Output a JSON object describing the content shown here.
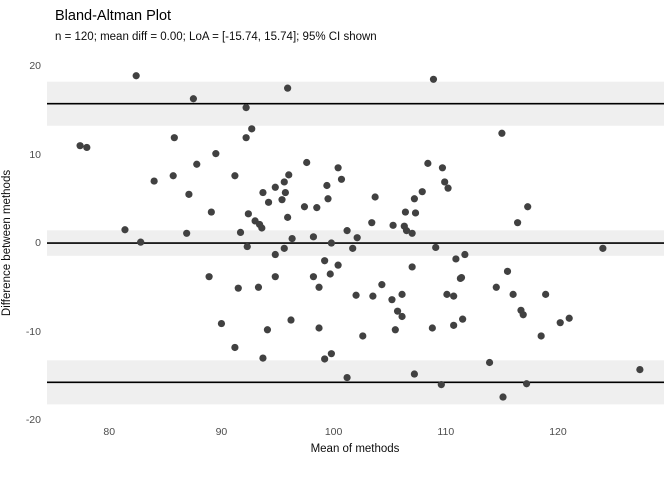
{
  "title": "Bland-Altman Plot",
  "subtitle": "n = 120; mean diff = 0.00; LoA = [-15.74, 15.74]; 95% CI shown",
  "stats": {
    "n": 120,
    "mean_diff": "0.00",
    "loa_lower": -15.74,
    "loa_upper": 15.74,
    "ci_level": "95%"
  },
  "colors": {
    "point": "#414141",
    "band": "#efefef",
    "line": "#000000",
    "tick_text": "#4d4d4d",
    "background": "#ffffff"
  },
  "chart_data": {
    "type": "scatter",
    "title": "Bland-Altman Plot",
    "subtitle": "n = 120; mean diff = 0.00; LoA = [-15.74, 15.74]; 95% CI shown",
    "xlabel": "Mean of methods",
    "ylabel": "Difference between methods",
    "xlim": [
      74.45,
      129.45
    ],
    "ylim": [
      -20.56,
      20.68
    ],
    "x_ticks": [
      80,
      90,
      100,
      110,
      120
    ],
    "y_ticks": [
      20,
      10,
      0,
      -10,
      -20
    ],
    "grid": false,
    "legend": false,
    "reference_lines": [
      {
        "name": "upper-loa",
        "y": 15.74,
        "ci": [
          13.25,
          18.23
        ]
      },
      {
        "name": "mean-diff",
        "y": 0.0,
        "ci": [
          -1.44,
          1.44
        ]
      },
      {
        "name": "lower-loa",
        "y": -15.74,
        "ci": [
          -18.23,
          -13.25
        ]
      }
    ],
    "points": [
      [
        82.4,
        18.9
      ],
      [
        87.5,
        16.3
      ],
      [
        77.4,
        11.0
      ],
      [
        78.0,
        10.8
      ],
      [
        85.8,
        11.9
      ],
      [
        87.8,
        8.9
      ],
      [
        85.7,
        7.6
      ],
      [
        84.0,
        7.0
      ],
      [
        95.9,
        17.5
      ],
      [
        92.2,
        15.3
      ],
      [
        92.7,
        12.9
      ],
      [
        92.2,
        11.9
      ],
      [
        89.5,
        10.1
      ],
      [
        97.6,
        9.1
      ],
      [
        91.2,
        7.6
      ],
      [
        96.0,
        7.7
      ],
      [
        100.4,
        8.5
      ],
      [
        100.7,
        7.2
      ],
      [
        95.6,
        6.9
      ],
      [
        94.8,
        6.3
      ],
      [
        99.4,
        6.5
      ],
      [
        108.9,
        18.5
      ],
      [
        115.0,
        12.4
      ],
      [
        108.4,
        9.0
      ],
      [
        109.7,
        8.5
      ],
      [
        109.9,
        6.9
      ],
      [
        110.2,
        6.2
      ],
      [
        107.9,
        5.8
      ],
      [
        87.1,
        5.5
      ],
      [
        81.4,
        1.5
      ],
      [
        82.8,
        0.1
      ],
      [
        86.9,
        1.1
      ],
      [
        93.7,
        5.7
      ],
      [
        95.7,
        5.7
      ],
      [
        94.2,
        4.6
      ],
      [
        95.4,
        4.9
      ],
      [
        97.4,
        4.1
      ],
      [
        98.5,
        4.0
      ],
      [
        99.5,
        5.0
      ],
      [
        89.1,
        3.5
      ],
      [
        92.4,
        3.3
      ],
      [
        93.0,
        2.5
      ],
      [
        93.4,
        2.1
      ],
      [
        93.6,
        1.7
      ],
      [
        91.7,
        1.2
      ],
      [
        95.9,
        2.9
      ],
      [
        101.2,
        1.4
      ],
      [
        96.3,
        0.5
      ],
      [
        98.2,
        0.7
      ],
      [
        99.8,
        0.0
      ],
      [
        101.7,
        -0.6
      ],
      [
        92.3,
        -0.4
      ],
      [
        94.8,
        -1.3
      ],
      [
        95.6,
        -0.6
      ],
      [
        94.8,
        -3.8
      ],
      [
        99.2,
        -2.0
      ],
      [
        100.4,
        -2.5
      ],
      [
        99.7,
        -3.5
      ],
      [
        98.2,
        -3.8
      ],
      [
        98.7,
        -5.0
      ],
      [
        88.9,
        -3.8
      ],
      [
        91.5,
        -5.1
      ],
      [
        93.3,
        -5.0
      ],
      [
        102.0,
        -5.9
      ],
      [
        103.7,
        5.2
      ],
      [
        107.2,
        5.0
      ],
      [
        106.4,
        3.5
      ],
      [
        107.3,
        3.4
      ],
      [
        103.4,
        2.3
      ],
      [
        105.3,
        2.0
      ],
      [
        106.3,
        1.9
      ],
      [
        106.5,
        1.4
      ],
      [
        107.0,
        1.1
      ],
      [
        102.1,
        0.6
      ],
      [
        109.1,
        -0.5
      ],
      [
        110.9,
        -1.8
      ],
      [
        111.7,
        -1.3
      ],
      [
        107.0,
        -2.7
      ],
      [
        111.3,
        -4.0
      ],
      [
        111.4,
        -3.9
      ],
      [
        104.3,
        -4.7
      ],
      [
        103.5,
        -6.0
      ],
      [
        105.2,
        -6.4
      ],
      [
        106.1,
        -5.8
      ],
      [
        110.1,
        -5.8
      ],
      [
        110.7,
        -6.0
      ],
      [
        115.5,
        -3.2
      ],
      [
        114.5,
        -5.0
      ],
      [
        116.0,
        -5.8
      ],
      [
        117.3,
        4.1
      ],
      [
        116.4,
        2.3
      ],
      [
        124.0,
        -0.6
      ],
      [
        118.9,
        -5.8
      ],
      [
        116.7,
        -7.6
      ],
      [
        90.0,
        -9.1
      ],
      [
        91.2,
        -11.8
      ],
      [
        94.1,
        -9.8
      ],
      [
        96.2,
        -8.7
      ],
      [
        98.7,
        -9.6
      ],
      [
        93.7,
        -13.0
      ],
      [
        99.2,
        -13.1
      ],
      [
        99.8,
        -12.5
      ],
      [
        101.2,
        -15.2
      ],
      [
        102.6,
        -10.5
      ],
      [
        105.5,
        -9.8
      ],
      [
        105.7,
        -7.7
      ],
      [
        106.1,
        -8.3
      ],
      [
        108.8,
        -9.6
      ],
      [
        110.7,
        -9.3
      ],
      [
        111.5,
        -8.6
      ],
      [
        113.9,
        -13.5
      ],
      [
        107.2,
        -14.8
      ],
      [
        109.6,
        -16.0
      ],
      [
        115.1,
        -17.4
      ],
      [
        116.9,
        -8.1
      ],
      [
        120.2,
        -9.0
      ],
      [
        121.0,
        -8.5
      ],
      [
        118.5,
        -10.5
      ],
      [
        127.3,
        -14.3
      ],
      [
        117.2,
        -15.9
      ]
    ]
  }
}
